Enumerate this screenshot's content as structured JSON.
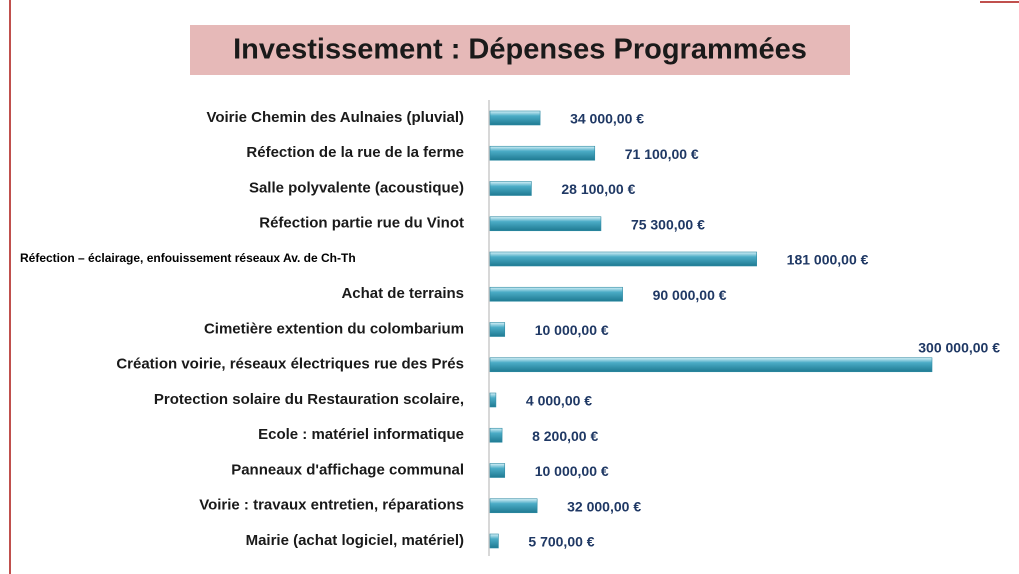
{
  "chart_data": {
    "type": "bar",
    "orientation": "horizontal",
    "title": "Investissement : Dépenses Programmées",
    "categories": [
      "Voirie Chemin des Aulnaies (pluvial)",
      "Réfection de la rue de la ferme",
      "Salle polyvalente (acoustique)",
      "Réfection partie rue du Vinot",
      "Réfection – éclairage, enfouissement réseaux Av. de Ch-Th",
      "Achat de terrains",
      "Cimetière extention du colombarium",
      "Création voirie, réseaux électriques rue des Prés",
      "Protection solaire du Restauration scolaire,",
      "Ecole : matériel informatique",
      "Panneaux d'affichage communal",
      "Voirie : travaux entretien, réparations",
      "Mairie (achat logiciel, matériel)"
    ],
    "values": [
      34000,
      71100,
      28100,
      75300,
      181000,
      90000,
      10000,
      300000,
      4000,
      8200,
      10000,
      32000,
      5700
    ],
    "value_labels": [
      "34 000,00 €",
      "71 100,00 €",
      "28 100,00 €",
      "75 300,00 €",
      "181 000,00 €",
      "90 000,00 €",
      "10 000,00 €",
      "300 000,00 €",
      "4 000,00 €",
      "8 200,00 €",
      "10 000,00 €",
      "32 000,00 €",
      "5 700,00 €"
    ],
    "color": "#4bacc6",
    "xlim": [
      0,
      300000
    ]
  }
}
